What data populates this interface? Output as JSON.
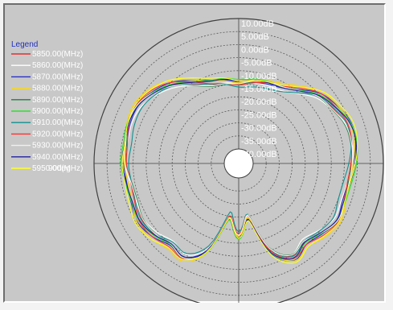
{
  "chart_data": {
    "type": "polar-line",
    "angle_label": "90deg",
    "radial_ticks": [
      "10.00dB",
      "5.00dB",
      "0.00dB",
      "-5.00dB",
      "-10.00dB",
      "-15.00dB",
      "-20.00dB",
      "-25.00dB",
      "-30.00dB",
      "-35.00dB",
      "-40.00dB"
    ],
    "rlim": [
      -40,
      10
    ],
    "legend_title": "Legend",
    "legend_placement": "left",
    "series": [
      {
        "name": "5850.00(MHz)",
        "color": "#e03030",
        "offset": 0.0
      },
      {
        "name": "5860.00(MHz)",
        "color": "#ffffff",
        "offset": -0.8
      },
      {
        "name": "5870.00(MHz)",
        "color": "#2830c8",
        "offset": 0.6
      },
      {
        "name": "5880.00(MHz)",
        "color": "#ffd800",
        "offset": 1.2
      },
      {
        "name": "5890.00(MHz)",
        "color": "#208040",
        "offset": -0.4
      },
      {
        "name": "5900.00(MHz)",
        "color": "#30e030",
        "offset": 0.9
      },
      {
        "name": "5910.00(MHz)",
        "color": "#109090",
        "offset": -1.1
      },
      {
        "name": "5920.00(MHz)",
        "color": "#ff3030",
        "offset": 0.3
      },
      {
        "name": "5930.00(MHz)",
        "color": "#f0f0f0",
        "offset": -0.2
      },
      {
        "name": "5940.00(MHz)",
        "color": "#2020a0",
        "offset": 0.5
      },
      {
        "name": "5950.00(MHz)",
        "color": "#ffff20",
        "offset": 1.5
      }
    ],
    "pattern": {
      "angles_deg": [
        0,
        10,
        20,
        30,
        40,
        50,
        60,
        70,
        80,
        90,
        100,
        110,
        120,
        130,
        140,
        150,
        160,
        170,
        180,
        190,
        200,
        210,
        220,
        230,
        240,
        250,
        260,
        270,
        280,
        290,
        300,
        310,
        320,
        330,
        340,
        350
      ],
      "gain_db": [
        -15,
        -14,
        -13,
        -12,
        -9,
        -5,
        -3,
        -1,
        -1,
        -2,
        -3,
        -3,
        -2,
        -4,
        -6,
        -4,
        -10,
        -25,
        -18,
        -25,
        -10,
        -4,
        -5,
        -3,
        -2,
        -3,
        -3,
        -2,
        -2,
        -1,
        -1,
        -3,
        -6,
        -10,
        -13,
        -14
      ]
    },
    "grid": true
  }
}
